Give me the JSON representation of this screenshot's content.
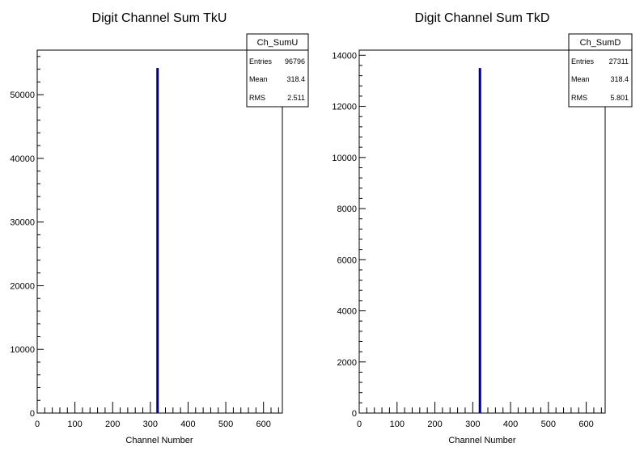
{
  "colors": {
    "histogram": "#000080",
    "axis": "#000000",
    "background": "#ffffff"
  },
  "chart_data": [
    {
      "type": "bar",
      "title": "Digit Channel Sum TkU",
      "xlabel": "Channel Number",
      "ylabel": "",
      "xlim": [
        0,
        650
      ],
      "ylim": [
        0,
        57000
      ],
      "xticks": [
        "0",
        "100",
        "200",
        "300",
        "400",
        "500",
        "600"
      ],
      "yticks": [
        "0",
        "10000",
        "20000",
        "30000",
        "40000",
        "50000"
      ],
      "bins": [
        {
          "x": 318,
          "y": 54200
        }
      ],
      "grid": false,
      "legend": "top-right",
      "stats": {
        "name": "Ch_SumU",
        "rows": [
          {
            "label": "Entries",
            "value": "96796"
          },
          {
            "label": "Mean",
            "value": "318.4"
          },
          {
            "label": "RMS",
            "value": "2.511"
          }
        ]
      }
    },
    {
      "type": "bar",
      "title": "Digit Channel Sum TkD",
      "xlabel": "Channel Number",
      "ylabel": "",
      "xlim": [
        0,
        650
      ],
      "ylim": [
        0,
        14200
      ],
      "xticks": [
        "0",
        "100",
        "200",
        "300",
        "400",
        "500",
        "600"
      ],
      "yticks": [
        "0",
        "2000",
        "4000",
        "6000",
        "8000",
        "10000",
        "12000",
        "14000"
      ],
      "bins": [
        {
          "x": 318,
          "y": 13500
        }
      ],
      "grid": false,
      "legend": "top-right",
      "stats": {
        "name": "Ch_SumD",
        "rows": [
          {
            "label": "Entries",
            "value": "27311"
          },
          {
            "label": "Mean",
            "value": "318.4"
          },
          {
            "label": "RMS",
            "value": "5.801"
          }
        ]
      }
    }
  ]
}
